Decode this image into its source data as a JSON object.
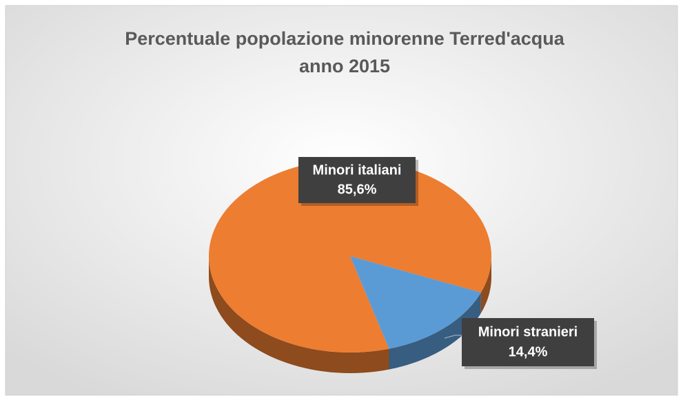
{
  "chart_data": {
    "type": "pie",
    "title": "Percentuale popolazione minorenne Terred'acqua anno 2015",
    "categories": [
      "Minori italiani",
      "Minori stranieri"
    ],
    "values": [
      85.6,
      14.4
    ],
    "value_labels": [
      "85,6%",
      "14,4%"
    ],
    "colors": [
      "#ed7d31",
      "#5b9bd5"
    ]
  }
}
